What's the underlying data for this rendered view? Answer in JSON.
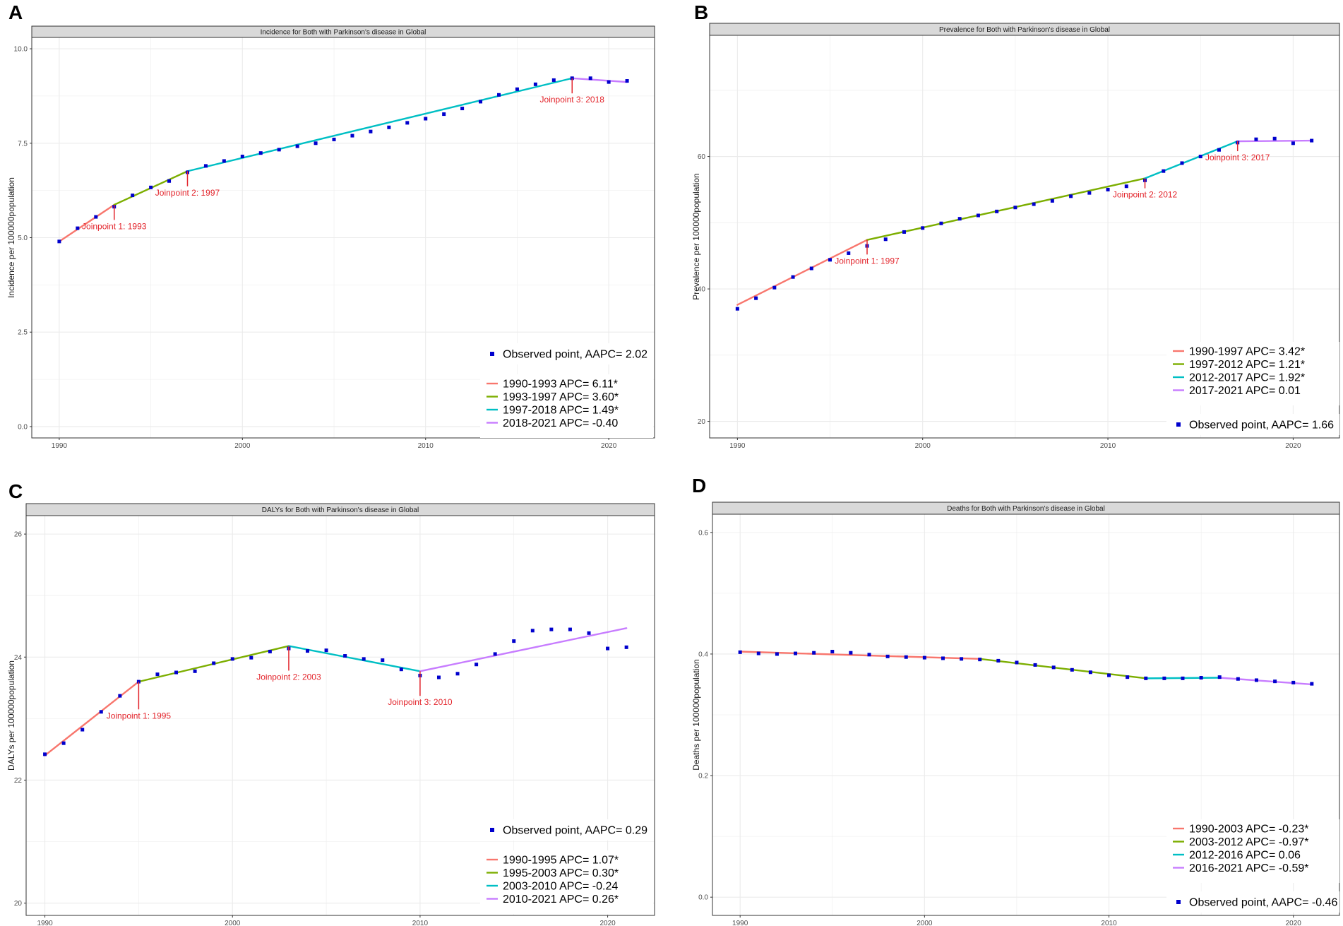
{
  "colors": {
    "seg1": "#f8766d",
    "seg2": "#7cae00",
    "seg3": "#00bfc4",
    "seg4": "#c77cff",
    "point": "#0000cd",
    "annotation": "#e3242b",
    "strip_bg": "#d9d9d9",
    "grid": "#ebebeb"
  },
  "chart_data": [
    {
      "type": "line",
      "letter": "A",
      "title": "Incidence for Both with Parkinson's disease in Global",
      "ylabel": "Incidence per 100000population",
      "xlabel": "",
      "xlim": [
        1988.5,
        2022.5
      ],
      "ylim": [
        -0.3,
        10.3
      ],
      "xticks": [
        1990,
        2000,
        2010,
        2020
      ],
      "yticks": [
        0,
        2.5,
        5,
        7.5,
        10
      ],
      "yticklabels": [
        "0.0",
        "2.5",
        "5.0",
        "7.5",
        "10.0"
      ],
      "points": {
        "x": [
          1990,
          1991,
          1992,
          1993,
          1994,
          1995,
          1996,
          1997,
          1998,
          1999,
          2000,
          2001,
          2002,
          2003,
          2004,
          2005,
          2006,
          2007,
          2008,
          2009,
          2010,
          2011,
          2012,
          2013,
          2014,
          2015,
          2016,
          2017,
          2018,
          2019,
          2020,
          2021
        ],
        "y": [
          4.9,
          5.25,
          5.55,
          5.82,
          6.12,
          6.33,
          6.5,
          6.73,
          6.9,
          7.03,
          7.15,
          7.24,
          7.33,
          7.42,
          7.5,
          7.6,
          7.7,
          7.81,
          7.92,
          8.04,
          8.15,
          8.27,
          8.42,
          8.6,
          8.78,
          8.93,
          9.06,
          9.17,
          9.22,
          9.22,
          9.12,
          9.15
        ]
      },
      "segments": [
        {
          "label": "1990-1993 APC= 6.11*",
          "x": [
            1990,
            1993
          ],
          "y": [
            4.9,
            5.87
          ]
        },
        {
          "label": "1993-1997 APC= 3.60*",
          "x": [
            1993,
            1997
          ],
          "y": [
            5.87,
            6.76
          ]
        },
        {
          "label": "1997-2018 APC= 1.49*",
          "x": [
            1997,
            2018
          ],
          "y": [
            6.76,
            9.22
          ]
        },
        {
          "label": "2018-2021 APC= -0.40",
          "x": [
            2018,
            2021
          ],
          "y": [
            9.22,
            9.12
          ]
        }
      ],
      "joinpoints": [
        {
          "label": "Joinpoint 1: 1993",
          "x": 1993,
          "y": 5.87,
          "dy": -0.4
        },
        {
          "label": "Joinpoint 2: 1997",
          "x": 1997,
          "y": 6.76,
          "dy": -0.4
        },
        {
          "label": "Joinpoint 3: 2018",
          "x": 2018,
          "y": 9.22,
          "dy": -0.4
        }
      ],
      "legend_points_label": "Observed point, AAPC= 2.02",
      "legend_order": "points-first"
    },
    {
      "type": "line",
      "letter": "B",
      "title": "Prevalence for Both with Parkinson's disease in Global",
      "ylabel": "Prevalence per 100000population",
      "xlabel": "",
      "xlim": [
        1988.5,
        2022.5
      ],
      "ylim": [
        17.5,
        78.3
      ],
      "xticks": [
        1990,
        2000,
        2010,
        2020
      ],
      "yticks": [
        20,
        40,
        60
      ],
      "yticklabels": [
        "20",
        "40",
        "60"
      ],
      "points": {
        "x": [
          1990,
          1991,
          1992,
          1993,
          1994,
          1995,
          1996,
          1997,
          1998,
          1999,
          2000,
          2001,
          2002,
          2003,
          2004,
          2005,
          2006,
          2007,
          2008,
          2009,
          2010,
          2011,
          2012,
          2013,
          2014,
          2015,
          2016,
          2017,
          2018,
          2019,
          2020,
          2021
        ],
        "y": [
          37.0,
          38.6,
          40.2,
          41.8,
          43.1,
          44.4,
          45.4,
          46.5,
          47.5,
          48.6,
          49.2,
          49.9,
          50.6,
          51.1,
          51.7,
          52.3,
          52.8,
          53.3,
          54.0,
          54.5,
          55.0,
          55.5,
          56.4,
          57.8,
          59.0,
          60.0,
          61.0,
          62.1,
          62.6,
          62.7,
          62.0,
          62.4
        ]
      },
      "segments": [
        {
          "label": "1990-1997 APC= 3.42*",
          "x": [
            1990,
            1997
          ],
          "y": [
            37.6,
            47.4
          ]
        },
        {
          "label": "1997-2012 APC= 1.21*",
          "x": [
            1997,
            2012
          ],
          "y": [
            47.4,
            56.7
          ]
        },
        {
          "label": "2012-2017 APC= 1.92*",
          "x": [
            2012,
            2017
          ],
          "y": [
            56.7,
            62.3
          ]
        },
        {
          "label": "2017-2021 APC= 0.01",
          "x": [
            2017,
            2021
          ],
          "y": [
            62.3,
            62.4
          ]
        }
      ],
      "joinpoints": [
        {
          "label": "Joinpoint 1: 1997",
          "x": 1997,
          "y": 47.4,
          "dy": -2.2
        },
        {
          "label": "Joinpoint 2: 2012",
          "x": 2012,
          "y": 56.7,
          "dy": -1.5
        },
        {
          "label": "Joinpoint 3: 2017",
          "x": 2017,
          "y": 62.3,
          "dy": -1.5
        }
      ],
      "legend_points_label": "Observed point, AAPC= 1.66",
      "legend_order": "segments-first"
    },
    {
      "type": "line",
      "letter": "C",
      "title": "DALYs for Both with Parkinson's disease in Global",
      "ylabel": "DALYs per 100000population",
      "xlabel": "",
      "xlim": [
        1989,
        2022.5
      ],
      "ylim": [
        19.8,
        26.3
      ],
      "xticks": [
        1990,
        2000,
        2010,
        2020
      ],
      "yticks": [
        20,
        22,
        24,
        26
      ],
      "yticklabels": [
        "20",
        "22",
        "24",
        "26"
      ],
      "points": {
        "x": [
          1990,
          1991,
          1992,
          1993,
          1994,
          1995,
          1996,
          1997,
          1998,
          1999,
          2000,
          2001,
          2002,
          2003,
          2004,
          2005,
          2006,
          2007,
          2008,
          2009,
          2010,
          2011,
          2012,
          2013,
          2014,
          2015,
          2016,
          2017,
          2018,
          2019,
          2020,
          2021
        ],
        "y": [
          22.42,
          22.6,
          22.82,
          23.11,
          23.37,
          23.6,
          23.72,
          23.75,
          23.77,
          23.9,
          23.97,
          23.99,
          24.09,
          24.14,
          24.1,
          24.11,
          24.02,
          23.97,
          23.95,
          23.8,
          23.7,
          23.67,
          23.73,
          23.88,
          24.05,
          24.26,
          24.43,
          24.45,
          24.45,
          24.39,
          24.14,
          24.16
        ]
      },
      "segments": [
        {
          "label": "1990-1995 APC= 1.07*",
          "x": [
            1990,
            1995
          ],
          "y": [
            22.4,
            23.6
          ]
        },
        {
          "label": "1995-2003 APC= 0.30*",
          "x": [
            1995,
            2003
          ],
          "y": [
            23.6,
            24.18
          ]
        },
        {
          "label": "2003-2010 APC= -0.24",
          "x": [
            2003,
            2010
          ],
          "y": [
            24.18,
            23.77
          ]
        },
        {
          "label": "2010-2021 APC= 0.26*",
          "x": [
            2010,
            2021
          ],
          "y": [
            23.77,
            24.47
          ]
        }
      ],
      "joinpoints": [
        {
          "label": "Joinpoint 1: 1995",
          "x": 1995,
          "y": 23.6,
          "dy": -0.45
        },
        {
          "label": "Joinpoint 2: 2003",
          "x": 2003,
          "y": 24.18,
          "dy": -0.4
        },
        {
          "label": "Joinpoint 3: 2010",
          "x": 2010,
          "y": 23.77,
          "dy": -0.4
        }
      ],
      "legend_points_label": "Observed point, AAPC= 0.29",
      "legend_order": "points-first"
    },
    {
      "type": "line",
      "letter": "D",
      "title": "Deaths for Both with Parkinson's disease in Global",
      "ylabel": "Deaths per 100000population",
      "xlabel": "",
      "xlim": [
        1988.5,
        2022.5
      ],
      "ylim": [
        -0.03,
        0.63
      ],
      "xticks": [
        1990,
        2000,
        2010,
        2020
      ],
      "yticks": [
        0,
        0.2,
        0.4,
        0.6
      ],
      "yticklabels": [
        "0.0",
        "0.2",
        "0.4",
        "0.6"
      ],
      "points": {
        "x": [
          1990,
          1991,
          1992,
          1993,
          1994,
          1995,
          1996,
          1997,
          1998,
          1999,
          2000,
          2001,
          2002,
          2003,
          2004,
          2005,
          2006,
          2007,
          2008,
          2009,
          2010,
          2011,
          2012,
          2013,
          2014,
          2015,
          2016,
          2017,
          2018,
          2019,
          2020,
          2021
        ],
        "y": [
          0.403,
          0.401,
          0.4,
          0.401,
          0.402,
          0.404,
          0.402,
          0.399,
          0.396,
          0.395,
          0.394,
          0.393,
          0.392,
          0.391,
          0.389,
          0.386,
          0.382,
          0.378,
          0.374,
          0.37,
          0.365,
          0.362,
          0.36,
          0.36,
          0.36,
          0.361,
          0.362,
          0.359,
          0.357,
          0.355,
          0.353,
          0.351
        ]
      },
      "segments": [
        {
          "label": "1990-2003 APC= -0.23*",
          "x": [
            1990,
            2003
          ],
          "y": [
            0.404,
            0.392
          ]
        },
        {
          "label": "2003-2012 APC= -0.97*",
          "x": [
            2003,
            2012
          ],
          "y": [
            0.392,
            0.36
          ]
        },
        {
          "label": "2012-2016 APC= 0.06",
          "x": [
            2012,
            2016
          ],
          "y": [
            0.36,
            0.361
          ]
        },
        {
          "label": "2016-2021 APC= -0.59*",
          "x": [
            2016,
            2021
          ],
          "y": [
            0.361,
            0.35
          ]
        }
      ],
      "joinpoints": [],
      "legend_points_label": "Observed point, AAPC= -0.46",
      "legend_order": "segments-first"
    }
  ]
}
